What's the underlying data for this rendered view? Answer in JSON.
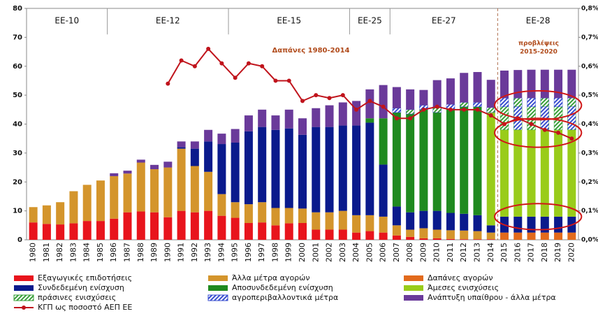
{
  "chart_data": {
    "type": "stacked-bar-line",
    "annotations": {
      "spending": "Δαπάνες 1980-2014",
      "forecast": [
        "προβλέψεις",
        "2015-2020"
      ]
    },
    "periods": [
      "ΕΕ-10",
      "ΕΕ-12",
      "ΕΕ-15",
      "ΕΕ-25",
      "ΕΕ-27",
      "ΕΕ-28"
    ],
    "categories": [
      "1980",
      "1981",
      "1982",
      "1983",
      "1984",
      "1985",
      "1986",
      "1987",
      "1988",
      "1989",
      "1990",
      "1991",
      "1992",
      "1993",
      "1994",
      "1995",
      "1996",
      "1997",
      "1998",
      "1999",
      "2000",
      "2001",
      "2002",
      "2003",
      "2004",
      "2005",
      "2006",
      "2007",
      "2008",
      "2009",
      "2010",
      "2011",
      "2012",
      "2013",
      "2014",
      "2015",
      "2016",
      "2017",
      "2018",
      "2019",
      "2020"
    ],
    "ylim": [
      0,
      80
    ],
    "yticks": [
      0,
      10,
      20,
      30,
      40,
      50,
      60,
      70,
      80
    ],
    "y2lim": [
      0,
      0.8
    ],
    "y2ticks": [
      {
        "value": 0,
        "label": "0,0%"
      },
      {
        "value": 0.1,
        "label": "0,1%"
      },
      {
        "value": 0.2,
        "label": "0,2%"
      },
      {
        "value": 0.3,
        "label": "0,3%"
      },
      {
        "value": 0.4,
        "label": "0,4%"
      },
      {
        "value": 0.5,
        "label": "0,5%"
      },
      {
        "value": 0.6,
        "label": "0,6%"
      },
      {
        "value": 0.7,
        "label": "0,7%"
      },
      {
        "value": 0.8,
        "label": "0,8%"
      }
    ],
    "series": [
      {
        "name": "Εξαγωγικές επιδοτήσεις",
        "color": "#e8141c",
        "values": [
          6,
          5.5,
          5.3,
          5.7,
          6.5,
          6.5,
          7.3,
          9.5,
          9.8,
          9.5,
          7.8,
          10,
          9.5,
          10,
          8.3,
          7.6,
          5.8,
          6,
          5,
          5.7,
          5.8,
          3.5,
          3.5,
          3.5,
          2.5,
          3,
          2.5,
          1.5,
          1,
          0.5,
          0.5,
          0.3,
          0.2,
          0.2,
          0.2,
          null,
          null,
          null,
          null,
          null,
          null
        ]
      },
      {
        "name": "Άλλα μέτρα αγορών",
        "color": "#d4952c",
        "values": [
          5.3,
          6.4,
          7.7,
          11.1,
          12.5,
          14,
          14.7,
          13.4,
          16.9,
          14.9,
          17.2,
          21.5,
          16,
          13.5,
          7.5,
          5.4,
          6.5,
          7,
          6,
          5.3,
          5,
          6,
          6,
          6.5,
          6,
          5.5,
          5.5,
          3.5,
          2.5,
          3.5,
          3,
          3,
          3,
          2.8,
          2.3,
          null,
          null,
          null,
          null,
          null,
          null
        ]
      },
      {
        "name": "Δαπάνες αγορών",
        "color": "#e26a1c",
        "values": [
          null,
          null,
          null,
          null,
          null,
          null,
          null,
          null,
          null,
          null,
          null,
          null,
          null,
          null,
          null,
          null,
          null,
          null,
          null,
          null,
          null,
          null,
          null,
          null,
          null,
          null,
          null,
          null,
          null,
          null,
          null,
          null,
          null,
          null,
          null,
          2.5,
          2.5,
          2.5,
          2.5,
          2.5,
          2.5
        ]
      },
      {
        "name": "Συνδεδεμένη ενίσχυση",
        "color": "#0a1a8c",
        "values": [
          null,
          null,
          null,
          null,
          null,
          null,
          null,
          null,
          null,
          null,
          null,
          0.5,
          6,
          10.5,
          17.3,
          20.6,
          25.2,
          26,
          27,
          27.5,
          25.5,
          29.5,
          29.5,
          29.5,
          31,
          32,
          18,
          6.5,
          6,
          6,
          6.5,
          6,
          5.8,
          5.5,
          2.5,
          5.5,
          5.5,
          5.5,
          5.5,
          5.5,
          5.5
        ]
      },
      {
        "name": "Αποσυνδεδεμένη ενίσχυση",
        "color": "#1f8a1f",
        "values": [
          null,
          null,
          null,
          null,
          null,
          null,
          null,
          null,
          null,
          null,
          null,
          null,
          null,
          null,
          null,
          null,
          null,
          null,
          null,
          null,
          null,
          null,
          null,
          null,
          null,
          1.5,
          16,
          32.5,
          34,
          35,
          34,
          36,
          37,
          37.5,
          null,
          null,
          null,
          null,
          null,
          null,
          null
        ]
      },
      {
        "name": "Άμεσες ενισχύσεις",
        "color": "#99cc1a",
        "values": [
          null,
          null,
          null,
          null,
          null,
          null,
          null,
          null,
          null,
          null,
          null,
          null,
          null,
          null,
          null,
          null,
          null,
          null,
          null,
          null,
          null,
          null,
          null,
          null,
          null,
          null,
          null,
          null,
          null,
          null,
          null,
          null,
          null,
          null,
          39,
          30,
          30,
          30,
          30,
          30,
          30
        ]
      },
      {
        "name": "πράσινες ενισχύσεις",
        "color": "#3aa03a",
        "pattern": "hatch",
        "values": [
          null,
          null,
          null,
          null,
          null,
          null,
          null,
          null,
          null,
          null,
          null,
          null,
          null,
          null,
          null,
          null,
          null,
          null,
          null,
          null,
          null,
          null,
          null,
          null,
          null,
          null,
          null,
          null,
          null,
          null,
          null,
          null,
          null,
          null,
          null,
          8,
          8,
          8,
          8,
          8,
          8
        ]
      },
      {
        "name": "αγροπεριβαλλοντικά μέτρα",
        "color": "#3a4fd0",
        "pattern": "hatch",
        "values": [
          null,
          null,
          null,
          null,
          null,
          null,
          null,
          null,
          null,
          null,
          null,
          null,
          null,
          null,
          null,
          null,
          null,
          null,
          null,
          null,
          null,
          null,
          null,
          null,
          null,
          null,
          null,
          1.5,
          1.5,
          1.5,
          2,
          1.5,
          1.5,
          1.5,
          1.7,
          3,
          3,
          3,
          3,
          3,
          3
        ]
      },
      {
        "name": "Ανάπτυξη υπαίθρου - άλλα μέτρα",
        "color": "#6a3a9a",
        "values": [
          null,
          null,
          null,
          null,
          null,
          null,
          1,
          1,
          1,
          1.5,
          2,
          2,
          2.5,
          4,
          3.6,
          4.7,
          5.5,
          6,
          5,
          6.5,
          5.7,
          6.5,
          7.5,
          8,
          8.5,
          10,
          11.5,
          7.3,
          7,
          5.3,
          9.2,
          9,
          10.2,
          10.5,
          9.6,
          9.5,
          9.7,
          9.8,
          9.8,
          9.8,
          9.8
        ]
      },
      {
        "name": "ΚΓΠ ως ποσοστό ΑΕΠ ΕΕ",
        "color": "#c0141c",
        "type": "line",
        "axis": "y2",
        "values": [
          null,
          null,
          null,
          null,
          null,
          null,
          null,
          null,
          null,
          null,
          0.54,
          0.62,
          0.6,
          0.66,
          0.61,
          0.56,
          0.61,
          0.6,
          0.55,
          0.55,
          0.48,
          0.5,
          0.49,
          0.5,
          0.45,
          0.48,
          0.46,
          0.42,
          0.42,
          0.45,
          0.46,
          0.45,
          0.45,
          0.45,
          0.43,
          0.4,
          0.42,
          0.4,
          0.38,
          0.37,
          0.35
        ]
      }
    ]
  }
}
